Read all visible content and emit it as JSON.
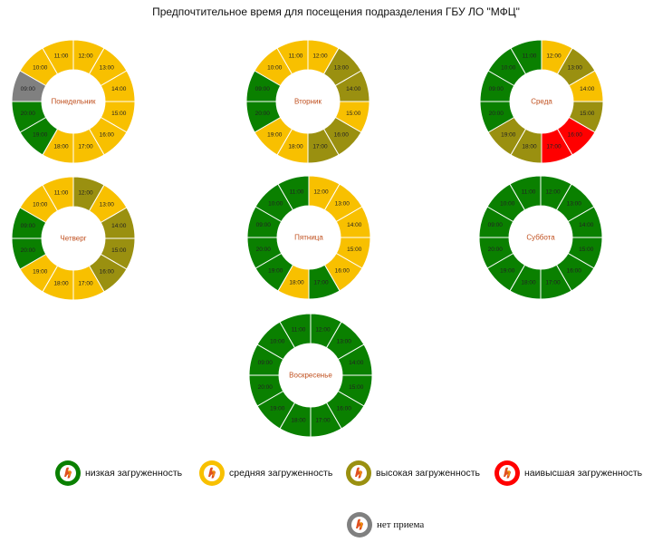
{
  "page": {
    "title": "Предпочтительное время для посещения подразделения ГБУ ЛО \"МФЦ\""
  },
  "colors": {
    "low": "#0a8000",
    "medium": "#f8c000",
    "high": "#9a9010",
    "highest": "#ff0000",
    "closed": "#808080",
    "day_label": "#c0501f"
  },
  "chart_data": [
    {
      "type": "donut",
      "day": "Понедельник",
      "slots": [
        {
          "time": "12:00",
          "load": "medium"
        },
        {
          "time": "13:00",
          "load": "medium"
        },
        {
          "time": "14:00",
          "load": "medium"
        },
        {
          "time": "15:00",
          "load": "medium"
        },
        {
          "time": "16:00",
          "load": "medium"
        },
        {
          "time": "17:00",
          "load": "medium"
        },
        {
          "time": "18:00",
          "load": "medium"
        },
        {
          "time": "19:00",
          "load": "low"
        },
        {
          "time": "20:00",
          "load": "low"
        },
        {
          "time": "09:00",
          "load": "closed"
        },
        {
          "time": "10:00",
          "load": "medium"
        },
        {
          "time": "11:00",
          "load": "medium"
        }
      ]
    },
    {
      "type": "donut",
      "day": "Вторник",
      "slots": [
        {
          "time": "12:00",
          "load": "medium"
        },
        {
          "time": "13:00",
          "load": "high"
        },
        {
          "time": "14:00",
          "load": "high"
        },
        {
          "time": "15:00",
          "load": "medium"
        },
        {
          "time": "16:00",
          "load": "high"
        },
        {
          "time": "17:00",
          "load": "high"
        },
        {
          "time": "18:00",
          "load": "medium"
        },
        {
          "time": "19:00",
          "load": "medium"
        },
        {
          "time": "20:00",
          "load": "low"
        },
        {
          "time": "09:00",
          "load": "low"
        },
        {
          "time": "10:00",
          "load": "medium"
        },
        {
          "time": "11:00",
          "load": "medium"
        }
      ]
    },
    {
      "type": "donut",
      "day": "Среда",
      "slots": [
        {
          "time": "12:00",
          "load": "medium"
        },
        {
          "time": "13:00",
          "load": "high"
        },
        {
          "time": "14:00",
          "load": "medium"
        },
        {
          "time": "15:00",
          "load": "high"
        },
        {
          "time": "16:00",
          "load": "highest"
        },
        {
          "time": "17:00",
          "load": "highest"
        },
        {
          "time": "18:00",
          "load": "high"
        },
        {
          "time": "19:00",
          "load": "high"
        },
        {
          "time": "20:00",
          "load": "low"
        },
        {
          "time": "09:00",
          "load": "low"
        },
        {
          "time": "10:00",
          "load": "low"
        },
        {
          "time": "11:00",
          "load": "low"
        }
      ]
    },
    {
      "type": "donut",
      "day": "Четверг",
      "slots": [
        {
          "time": "12:00",
          "load": "high"
        },
        {
          "time": "13:00",
          "load": "medium"
        },
        {
          "time": "14:00",
          "load": "high"
        },
        {
          "time": "15:00",
          "load": "high"
        },
        {
          "time": "16:00",
          "load": "high"
        },
        {
          "time": "17:00",
          "load": "medium"
        },
        {
          "time": "18:00",
          "load": "medium"
        },
        {
          "time": "19:00",
          "load": "medium"
        },
        {
          "time": "20:00",
          "load": "low"
        },
        {
          "time": "09:00",
          "load": "low"
        },
        {
          "time": "10:00",
          "load": "medium"
        },
        {
          "time": "11:00",
          "load": "medium"
        }
      ]
    },
    {
      "type": "donut",
      "day": "Пятница",
      "slots": [
        {
          "time": "12:00",
          "load": "medium"
        },
        {
          "time": "13:00",
          "load": "medium"
        },
        {
          "time": "14:00",
          "load": "medium"
        },
        {
          "time": "15:00",
          "load": "medium"
        },
        {
          "time": "16:00",
          "load": "medium"
        },
        {
          "time": "17:00",
          "load": "low"
        },
        {
          "time": "18:00",
          "load": "medium"
        },
        {
          "time": "19:00",
          "load": "low"
        },
        {
          "time": "20:00",
          "load": "low"
        },
        {
          "time": "09:00",
          "load": "low"
        },
        {
          "time": "10:00",
          "load": "low"
        },
        {
          "time": "11:00",
          "load": "low"
        }
      ]
    },
    {
      "type": "donut",
      "day": "Суббота",
      "slots": [
        {
          "time": "12:00",
          "load": "low"
        },
        {
          "time": "13:00",
          "load": "low"
        },
        {
          "time": "14:00",
          "load": "low"
        },
        {
          "time": "15:00",
          "load": "low"
        },
        {
          "time": "16:00",
          "load": "low"
        },
        {
          "time": "17:00",
          "load": "low"
        },
        {
          "time": "18:00",
          "load": "low"
        },
        {
          "time": "19:00",
          "load": "low"
        },
        {
          "time": "20:00",
          "load": "low"
        },
        {
          "time": "09:00",
          "load": "low"
        },
        {
          "time": "10:00",
          "load": "low"
        },
        {
          "time": "11:00",
          "load": "low"
        }
      ]
    },
    {
      "type": "donut",
      "day": "Воскресенье",
      "slots": [
        {
          "time": "12:00",
          "load": "low"
        },
        {
          "time": "13:00",
          "load": "low"
        },
        {
          "time": "14:00",
          "load": "low"
        },
        {
          "time": "15:00",
          "load": "low"
        },
        {
          "time": "16:00",
          "load": "low"
        },
        {
          "time": "17:00",
          "load": "low"
        },
        {
          "time": "18:00",
          "load": "low"
        },
        {
          "time": "19:00",
          "load": "low"
        },
        {
          "time": "20:00",
          "load": "low"
        },
        {
          "time": "09:00",
          "load": "low"
        },
        {
          "time": "10:00",
          "load": "low"
        },
        {
          "time": "11:00",
          "load": "low"
        }
      ]
    }
  ],
  "legend": [
    {
      "key": "low",
      "label": "низкая загруженность"
    },
    {
      "key": "medium",
      "label": "средняя загруженность"
    },
    {
      "key": "high",
      "label": "высокая загруженность"
    },
    {
      "key": "highest",
      "label": "наивысшая загруженность"
    },
    {
      "key": "closed",
      "label": "нет приема"
    }
  ]
}
